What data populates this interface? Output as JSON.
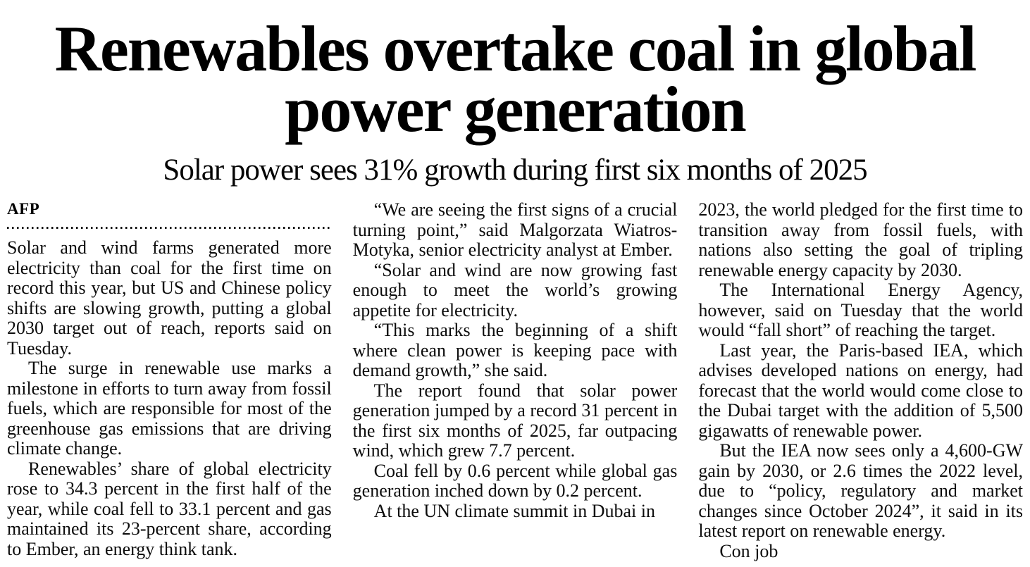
{
  "article": {
    "headline": "Renewables overtake coal in global power generation",
    "subheadline": "Solar power sees 31% growth during first six months of 2025",
    "byline": "AFP",
    "columns": [
      {
        "paragraphs": [
          {
            "text": "Solar and wind farms generated more electricity than coal for the first time on record this year, but US and Chinese policy shifts are slowing growth, putting a global 2030 target out of reach, reports said on Tuesday."
          },
          {
            "text": "The surge in renewable use marks a milestone in efforts to turn away from fossil fuels, which are responsible for most of the greenhouse gas emissions that are driving climate change."
          },
          {
            "text": "Renewables’ share of global electricity rose to 34.3 percent in the first half of the year, while coal fell to 33.1 percent and gas maintained its 23-percent share, according to Ember, an energy think tank."
          }
        ]
      },
      {
        "paragraphs": [
          {
            "text": "“We are seeing the first signs of a crucial turning point,” said Malgorzata Wiatros-Motyka, senior electricity analyst at Ember."
          },
          {
            "text": "“Solar and wind are now growing fast enough to meet the world’s growing appetite for electricity."
          },
          {
            "text": "“This marks the beginning of a shift where clean power is keeping pace with demand growth,” she said."
          },
          {
            "text": "The report found that solar power generation jumped by a record 31 percent in the first six months of 2025, far outpacing wind, which grew 7.7 percent."
          },
          {
            "text": "Coal fell by 0.6 percent while global gas generation inched down by 0.2 percent."
          },
          {
            "text": "At the UN climate summit in Dubai in"
          }
        ]
      },
      {
        "paragraphs": [
          {
            "text": "2023, the world pledged for the first time to transition away from fossil fuels, with nations also setting the goal of tripling renewable energy capacity by 2030."
          },
          {
            "text": "The International Energy Agency, however, said on Tuesday that the world would “fall short” of reaching the target."
          },
          {
            "text": "Last year, the Paris-based IEA, which advises developed nations on energy, had forecast that the world would come close to the Dubai target with the addition of 5,500 gigawatts of renewable power."
          },
          {
            "text": "But the IEA now sees only a 4,600-GW gain by 2030, or 2.6 times the 2022 level, due to “policy, regulatory and market changes since October 2024”, it said in its latest report on renewable energy."
          },
          {
            "text": "Con job"
          }
        ]
      }
    ]
  }
}
